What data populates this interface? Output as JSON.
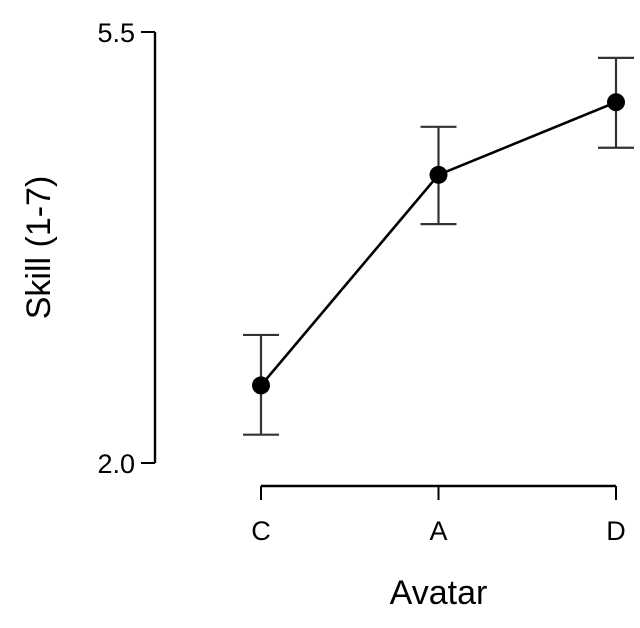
{
  "chart_data": {
    "type": "line",
    "categories": [
      "C",
      "A",
      "D"
    ],
    "series": [
      {
        "values": [
          2.63,
          4.34,
          4.93
        ],
        "err_lower": [
          2.23,
          3.94,
          4.56
        ],
        "err_upper": [
          3.04,
          4.73,
          5.29
        ]
      }
    ],
    "xlabel": "Avatar",
    "ylabel": "Skill (1-7)",
    "ylim": [
      2.0,
      5.5
    ],
    "yticks": [
      "2.0",
      "5.5"
    ],
    "grid": false,
    "legend": "none",
    "colors": {
      "line": "#000000",
      "point": "#000000",
      "error_bar": "#333333"
    }
  }
}
